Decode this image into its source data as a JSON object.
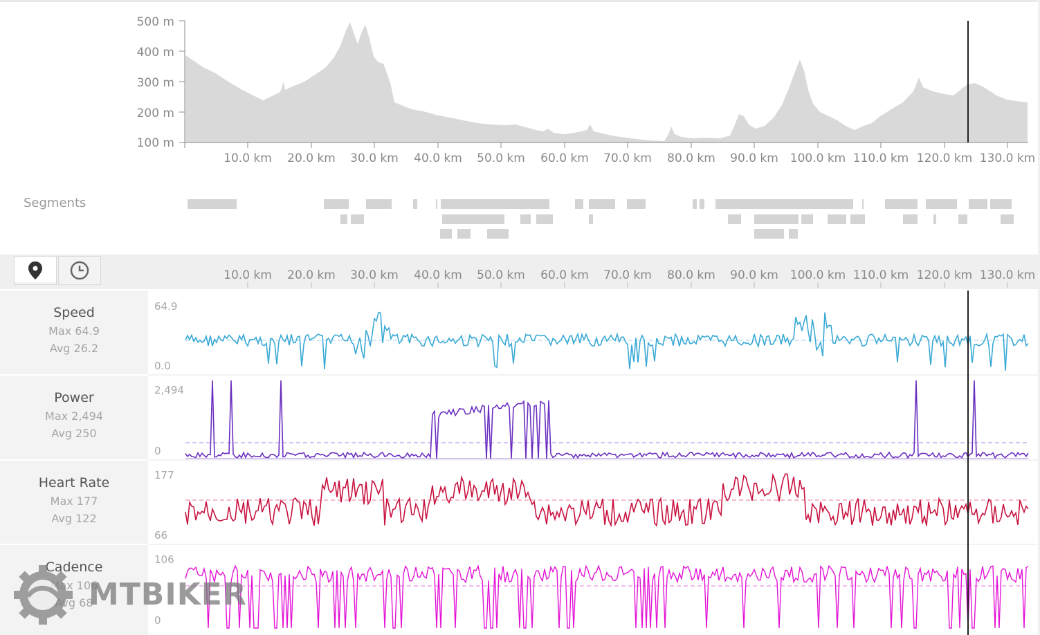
{
  "elevation": {
    "y_ticks": [
      "500 m",
      "400 m",
      "300 m",
      "200 m",
      "100 m"
    ],
    "x_ticks": [
      "10.0 km",
      "20.0 km",
      "30.0 km",
      "40.0 km",
      "50.0 km",
      "60.0 km",
      "70.0 km",
      "80.0 km",
      "90.0 km",
      "100.0 km",
      "110.0 km",
      "120.0 km",
      "130.0 km"
    ],
    "fill_color": "#d9d9d9"
  },
  "segments": {
    "label": "Segments"
  },
  "toolbar": {
    "distance_icon": "map-pin-icon",
    "time_icon": "clock-icon",
    "x_ticks": [
      "10.0 km",
      "20.0 km",
      "30.0 km",
      "40.0 km",
      "50.0 km",
      "60.0 km",
      "70.0 km",
      "80.0 km",
      "90.0 km",
      "100.0 km",
      "110.0 km",
      "120.0 km",
      "130.0 km"
    ]
  },
  "metrics": [
    {
      "id": "speed",
      "name": "Speed",
      "max_text": "Max 64.9",
      "avg_text": "Avg 26.2",
      "top_label": "64.9",
      "bottom_label": "0.0",
      "color": "#3aa9d6",
      "avg_color": "#bfe1ef"
    },
    {
      "id": "power",
      "name": "Power",
      "max_text": "Max 2,494",
      "avg_text": "Avg 250",
      "top_label": "2,494",
      "bottom_label": "0",
      "color": "#6a2fc0",
      "avg_color": "#c7b0ea"
    },
    {
      "id": "heartrate",
      "name": "Heart Rate",
      "max_text": "Max 177",
      "avg_text": "Avg 122",
      "top_label": "177",
      "bottom_label": "66",
      "color": "#c8123f",
      "avg_color": "#f2a6b6"
    },
    {
      "id": "cadence",
      "name": "Cadence",
      "max_text": "Max 106",
      "avg_text": "Avg 68",
      "top_label": "106",
      "bottom_label": "0",
      "color": "#e312d6",
      "avg_color": "#f3a6ee"
    }
  ],
  "watermark": {
    "text": "MTBIKER"
  }
}
